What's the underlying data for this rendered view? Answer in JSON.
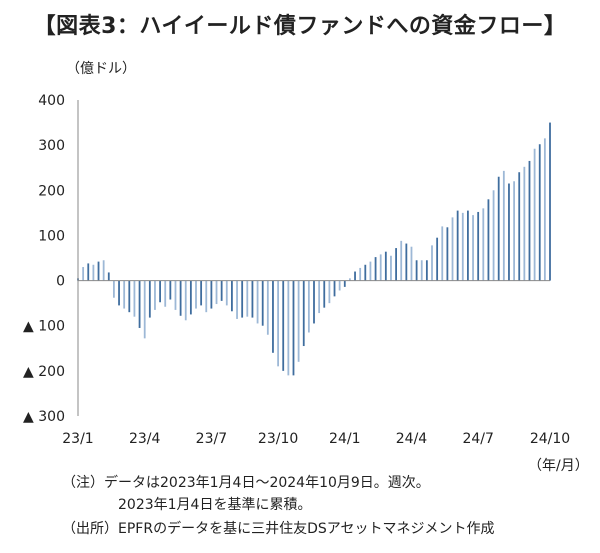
{
  "title": "【図表3：ハイイールド債ファンドへの資金フロー】",
  "unit_label": "（億ドル）",
  "x_unit_label": "（年/月）",
  "notes": {
    "note1": "（注）データは2023年1月4日～2024年10月9日。週次。",
    "note2": "2023年1月4日を基準に累積。",
    "source": "（出所）EPFRのデータを基に三井住友DSアセットマネジメント作成"
  },
  "colors": {
    "bar_a": "#3f6d9e",
    "bar_b": "#9db8d6",
    "axis": "#8a8a8a",
    "text": "#222222"
  },
  "chart_data": {
    "type": "bar",
    "title": "",
    "xlabel": "",
    "ylabel": "",
    "ylim": [
      -300,
      400
    ],
    "yticks": [
      400,
      300,
      200,
      100,
      0,
      -100,
      -200,
      -300
    ],
    "ytick_labels": [
      "400",
      "300",
      "200",
      "100",
      "0",
      "▲ 100",
      "▲ 200",
      "▲ 300"
    ],
    "xtick_labels": [
      "23/1",
      "23/4",
      "23/7",
      "23/10",
      "24/1",
      "24/4",
      "24/7",
      "24/10"
    ],
    "xtick_index": [
      0,
      13,
      26,
      39,
      52,
      65,
      78,
      92
    ],
    "grid": false,
    "values": [
      5,
      30,
      38,
      35,
      42,
      45,
      18,
      -38,
      -55,
      -62,
      -70,
      -80,
      -105,
      -128,
      -82,
      -65,
      -48,
      -58,
      -42,
      -65,
      -78,
      -88,
      -75,
      -62,
      -55,
      -70,
      -62,
      -52,
      -45,
      -55,
      -68,
      -85,
      -82,
      -80,
      -82,
      -95,
      -100,
      -120,
      -160,
      -190,
      -200,
      -210,
      -210,
      -180,
      -145,
      -115,
      -95,
      -72,
      -60,
      -50,
      -35,
      -22,
      -14,
      5,
      20,
      28,
      35,
      42,
      52,
      58,
      64,
      55,
      72,
      88,
      82,
      75,
      45,
      45,
      45,
      78,
      95,
      120,
      118,
      140,
      155,
      150,
      155,
      145,
      152,
      160,
      180,
      200,
      230,
      243,
      215,
      220,
      240,
      252,
      265,
      292,
      302,
      315,
      350
    ]
  }
}
